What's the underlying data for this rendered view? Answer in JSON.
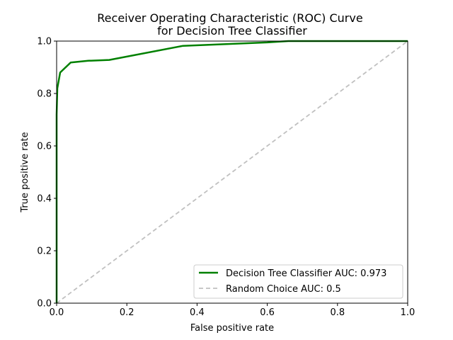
{
  "chart_data": {
    "type": "line",
    "title": "Receiver Operating Characteristic (ROC) Curve",
    "subtitle": "for Decision Tree Classifier",
    "xlabel": "False positive rate",
    "ylabel": "True positive rate",
    "xlim": [
      0,
      1
    ],
    "ylim": [
      0,
      1
    ],
    "xticks": [
      "0.0",
      "0.2",
      "0.4",
      "0.6",
      "0.8",
      "1.0"
    ],
    "yticks": [
      "0.0",
      "0.2",
      "0.4",
      "0.6",
      "0.8",
      "1.0"
    ],
    "grid": false,
    "legend_position": "lower-right",
    "series": [
      {
        "name": "Decision Tree Classifier AUC: 0.973",
        "color": "#008000",
        "style": "solid",
        "x": [
          0.0,
          0.0,
          0.002,
          0.01,
          0.04,
          0.09,
          0.15,
          0.36,
          0.6,
          0.66,
          1.0
        ],
        "y": [
          0.0,
          0.72,
          0.82,
          0.88,
          0.918,
          0.925,
          0.928,
          0.982,
          0.995,
          1.0,
          1.0
        ]
      },
      {
        "name": "Random Choice AUC: 0.5",
        "color": "#c0c0c0",
        "style": "dashed",
        "x": [
          0.0,
          1.0
        ],
        "y": [
          0.0,
          1.0
        ]
      }
    ]
  }
}
